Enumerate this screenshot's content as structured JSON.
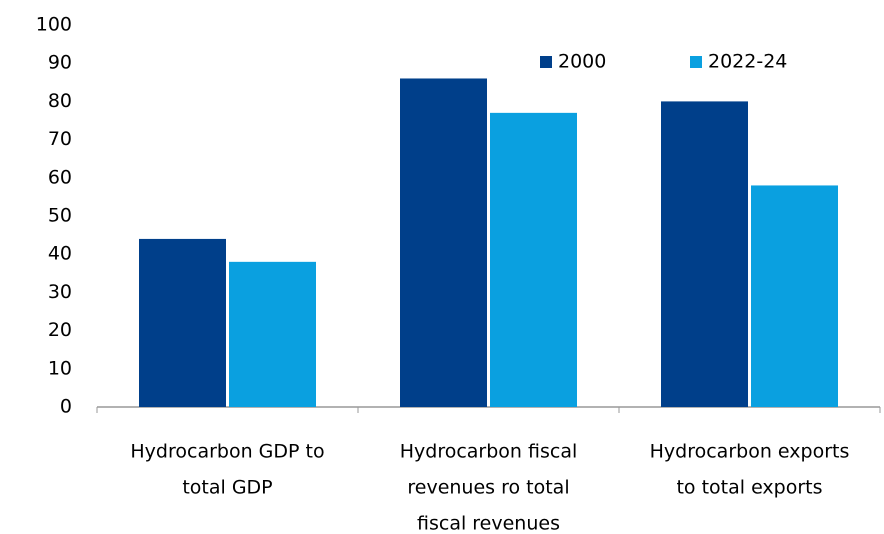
{
  "chart_data": {
    "type": "bar",
    "categories": [
      [
        "Hydrocarbon GDP to",
        "total GDP"
      ],
      [
        "Hydrocarbon fiscal",
        "revenues ro total",
        "fiscal revenues"
      ],
      [
        "Hydrocarbon exports",
        "to total exports"
      ]
    ],
    "series": [
      {
        "name": "2000",
        "color": "#003f8a",
        "values": [
          44,
          86,
          80
        ]
      },
      {
        "name": "2022-24",
        "color": "#0aa0e0",
        "values": [
          38,
          77,
          58
        ]
      }
    ],
    "ylim": [
      0,
      100
    ],
    "yticks": [
      0,
      10,
      20,
      30,
      40,
      50,
      60,
      70,
      80,
      90,
      100
    ],
    "legend": "upper right",
    "grid": false
  }
}
